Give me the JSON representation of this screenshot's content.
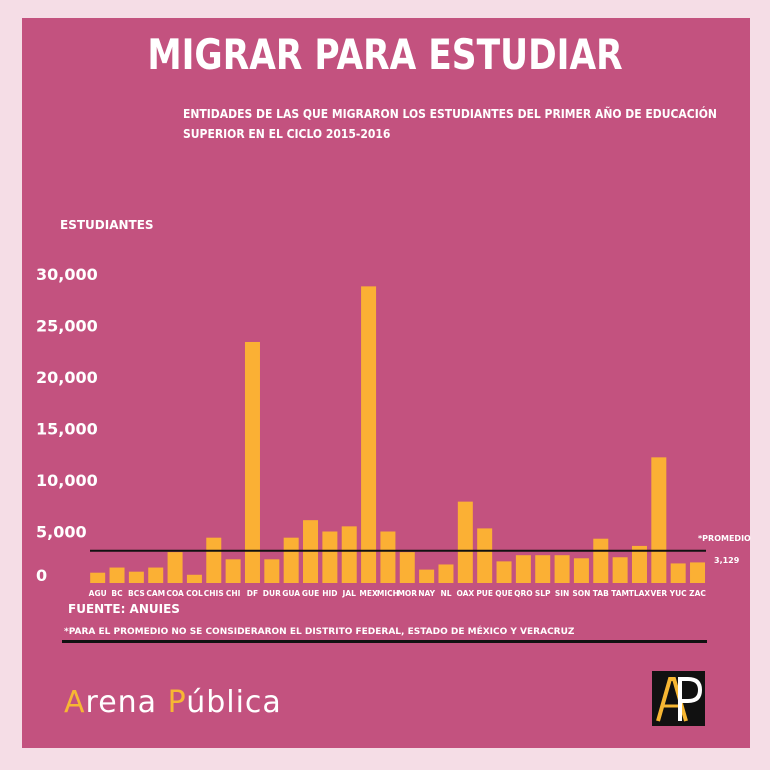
{
  "header": {
    "title": "MIGRAR PARA ESTUDIAR",
    "subtitle": "ENTIDADES DE LAS QUE MIGRARON LOS ESTUDIANTES DEL PRIMER AÑO DE EDUCACIÓN SUPERIOR EN EL CICLO 2015-2016"
  },
  "footer": {
    "source": "FUENTE: ANUIES",
    "footnote": "*PARA EL PROMEDIO NO SE CONSIDERARON EL  DISTRITO FEDERAL, ESTADO DE MÉXICO Y VERACRUZ",
    "brand_first_initial": "A",
    "brand_first_rest": "rena ",
    "brand_second_initial": "P",
    "brand_second_rest": "ública",
    "logo_text": "AP"
  },
  "colors": {
    "background": "#f5dde6",
    "panel": "#c3527f",
    "bar": "#fbb034",
    "average_line": "#111111",
    "text": "#ffffff"
  },
  "chart_data": {
    "type": "bar",
    "ylabel": "ESTUDIANTES",
    "ylim": [
      0,
      30000
    ],
    "yticks": [
      0,
      5000,
      10000,
      15000,
      20000,
      25000,
      30000
    ],
    "ytick_labels": [
      "0",
      "5,000",
      "10,000",
      "15,000",
      "20,000",
      "25,000",
      "30,000"
    ],
    "grid": false,
    "categories": [
      "AGU",
      "BC",
      "BCS",
      "CAM",
      "COA",
      "COL",
      "CHIS",
      "CHI",
      "DF",
      "DUR",
      "GUA",
      "GUE",
      "HID",
      "JAL",
      "MEX",
      "MICH",
      "MOR",
      "NAY",
      "NL",
      "OAX",
      "PUE",
      "QUE",
      "QRO",
      "SLP",
      "SIN",
      "SON",
      "TAB",
      "TAM",
      "TLAX",
      "VER",
      "YUC",
      "ZAC"
    ],
    "values": [
      1000,
      1500,
      1100,
      1500,
      3000,
      800,
      4400,
      2300,
      23400,
      2300,
      4400,
      6100,
      5000,
      5500,
      28800,
      5000,
      3000,
      1300,
      1800,
      7900,
      5300,
      2100,
      2700,
      2700,
      2700,
      2400,
      4300,
      2500,
      3600,
      12200,
      1900,
      2000
    ],
    "average": {
      "value": 3129,
      "label": "*PROMEDIO",
      "value_label": "3,129"
    }
  }
}
